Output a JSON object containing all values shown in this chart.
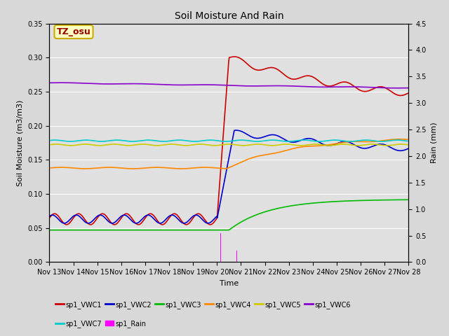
{
  "title": "Soil Moisture And Rain",
  "ylabel_left": "Soil Moisture (m3/m3)",
  "ylabel_right": "Rain (mm)",
  "xlabel": "Time",
  "annotation": "TZ_osu",
  "ylim_left": [
    0.0,
    0.35
  ],
  "ylim_right": [
    0.0,
    4.5
  ],
  "colors": {
    "VWC1": "#cc0000",
    "VWC2": "#0000cc",
    "VWC3": "#00bb00",
    "VWC4": "#ff8800",
    "VWC5": "#cccc00",
    "VWC6": "#8800cc",
    "VWC7": "#00cccc",
    "Rain": "#ff00ff"
  },
  "fig_facecolor": "#d8d8d8",
  "ax_facecolor": "#e0e0e0",
  "grid_color": "#ffffff",
  "legend_items_row1": [
    "sp1_VWC1",
    "sp1_VWC2",
    "sp1_VWC3",
    "sp1_VWC4",
    "sp1_VWC5",
    "sp1_VWC6"
  ],
  "legend_items_row2": [
    "sp1_VWC7",
    "sp1_Rain"
  ],
  "yticks_left": [
    0.0,
    0.05,
    0.1,
    0.15,
    0.2,
    0.25,
    0.3,
    0.35
  ],
  "yticks_right": [
    0.0,
    0.5,
    1.0,
    1.5,
    2.0,
    2.5,
    3.0,
    3.5,
    4.0,
    4.5
  ],
  "xlim": [
    0,
    15
  ],
  "x_tick_days": [
    0,
    1,
    2,
    3,
    4,
    5,
    6,
    7,
    8,
    9,
    10,
    11,
    12,
    13,
    14,
    15
  ],
  "x_tick_labels": [
    "Nov 13",
    "Nov 14",
    "Nov 15",
    "Nov 16",
    "Nov 17",
    "Nov 18",
    "Nov 19",
    "Nov 20",
    "Nov 21",
    "Nov 22",
    "Nov 23",
    "Nov 24",
    "Nov 25",
    "Nov 26",
    "Nov 27",
    "Nov 28"
  ]
}
